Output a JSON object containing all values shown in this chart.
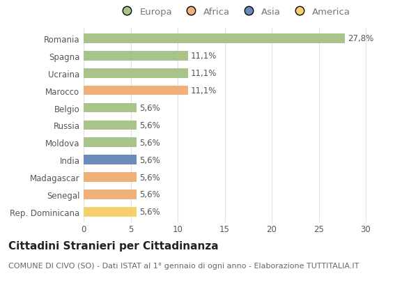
{
  "countries": [
    "Romania",
    "Spagna",
    "Ucraina",
    "Marocco",
    "Belgio",
    "Russia",
    "Moldova",
    "India",
    "Madagascar",
    "Senegal",
    "Rep. Dominicana"
  ],
  "values": [
    27.8,
    11.1,
    11.1,
    11.1,
    5.6,
    5.6,
    5.6,
    5.6,
    5.6,
    5.6,
    5.6
  ],
  "labels": [
    "27,8%",
    "11,1%",
    "11,1%",
    "11,1%",
    "5,6%",
    "5,6%",
    "5,6%",
    "5,6%",
    "5,6%",
    "5,6%",
    "5,6%"
  ],
  "continents": [
    "Europa",
    "Europa",
    "Europa",
    "Africa",
    "Europa",
    "Europa",
    "Europa",
    "Asia",
    "Africa",
    "Africa",
    "America"
  ],
  "colors": {
    "Europa": "#a8c48a",
    "Africa": "#f0b07a",
    "Asia": "#6b8cba",
    "America": "#f5d06e"
  },
  "legend_order": [
    "Europa",
    "Africa",
    "Asia",
    "America"
  ],
  "title": "Cittadini Stranieri per Cittadinanza",
  "subtitle": "COMUNE DI CIVO (SO) - Dati ISTAT al 1° gennaio di ogni anno - Elaborazione TUTTITALIA.IT",
  "xlim": [
    0,
    32
  ],
  "xticks": [
    0,
    5,
    10,
    15,
    20,
    25,
    30
  ],
  "background_color": "#ffffff",
  "grid_color": "#e0e0e0",
  "bar_height": 0.55,
  "title_fontsize": 11,
  "subtitle_fontsize": 8,
  "label_fontsize": 8.5,
  "tick_fontsize": 8.5,
  "legend_fontsize": 9.5
}
